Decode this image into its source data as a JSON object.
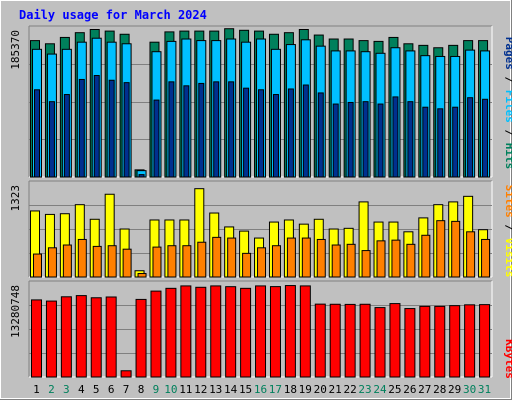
{
  "title": "Daily usage for March 2024",
  "chart_data": [
    {
      "type": "bar",
      "panel": "hits-files-pages",
      "ylabel_max": "185370",
      "ylim": [
        0,
        185370
      ],
      "categories": [
        "1",
        "2",
        "3",
        "4",
        "5",
        "6",
        "7",
        "8",
        "9",
        "10",
        "11",
        "12",
        "13",
        "14",
        "15",
        "16",
        "17",
        "18",
        "19",
        "20",
        "21",
        "22",
        "23",
        "24",
        "25",
        "26",
        "27",
        "28",
        "29",
        "30",
        "31"
      ],
      "weekend_days": [
        2,
        3,
        9,
        10,
        16,
        17,
        23,
        24,
        30,
        31
      ],
      "legend": [
        "Pages",
        "Files",
        "Hits"
      ],
      "series": [
        {
          "name": "Hits",
          "color": "#00805c",
          "values": [
            172000,
            168000,
            176000,
            182000,
            186000,
            184000,
            180000,
            9000,
            170000,
            183000,
            184000,
            184000,
            184000,
            187000,
            185000,
            184000,
            180000,
            182000,
            186000,
            179000,
            174000,
            174000,
            172000,
            171000,
            176000,
            168000,
            166000,
            163000,
            166000,
            172000,
            172000
          ]
        },
        {
          "name": "Files",
          "color": "#00c0ff",
          "values": [
            161000,
            155000,
            161000,
            170000,
            175000,
            170000,
            168000,
            8000,
            158000,
            171000,
            174000,
            172000,
            172000,
            174000,
            170000,
            174000,
            161000,
            167000,
            173000,
            165000,
            159000,
            159000,
            158000,
            156000,
            163000,
            159000,
            153000,
            152000,
            152000,
            160000,
            159000
          ]
        },
        {
          "name": "Pages",
          "color": "#00308f",
          "values": [
            110000,
            95000,
            104000,
            123000,
            128000,
            122000,
            119000,
            3000,
            97000,
            120000,
            115000,
            118000,
            120000,
            120000,
            112000,
            110000,
            104000,
            111000,
            116000,
            106000,
            92000,
            94000,
            95000,
            92000,
            101000,
            95000,
            88000,
            86000,
            88000,
            100000,
            98000
          ]
        }
      ]
    },
    {
      "type": "bar",
      "panel": "visits-sites",
      "ylabel_max": "1323",
      "ylim": [
        0,
        1323
      ],
      "legend": [
        "Sites",
        "Visits"
      ],
      "series": [
        {
          "name": "Visits",
          "color": "#ffff00",
          "values": [
            950,
            900,
            910,
            1040,
            830,
            1190,
            690,
            90,
            820,
            820,
            820,
            1270,
            920,
            720,
            660,
            560,
            790,
            820,
            760,
            830,
            690,
            700,
            1080,
            790,
            790,
            650,
            850,
            1040,
            1080,
            1160,
            680
          ]
        },
        {
          "name": "Sites",
          "color": "#ff8000",
          "values": [
            330,
            420,
            460,
            540,
            440,
            450,
            400,
            50,
            430,
            450,
            450,
            500,
            570,
            560,
            340,
            420,
            450,
            560,
            560,
            540,
            460,
            470,
            380,
            520,
            530,
            470,
            600,
            810,
            800,
            650,
            540
          ]
        }
      ]
    },
    {
      "type": "bar",
      "panel": "kbytes",
      "ylabel_max": "13280748",
      "ylim": [
        0,
        13280748
      ],
      "legend": [
        "KBytes"
      ],
      "series": [
        {
          "name": "KBytes",
          "color": "#ff0000",
          "values": [
            11130000,
            10960000,
            11580000,
            11750000,
            11440000,
            11550000,
            900000,
            11200000,
            12400000,
            12800000,
            13150000,
            12950000,
            13150000,
            13040000,
            12800000,
            13150000,
            13050000,
            13200000,
            13150000,
            10520000,
            10500000,
            10480000,
            10500000,
            10020000,
            10600000,
            9880000,
            10200000,
            10200000,
            10300000,
            10420000,
            10450000
          ]
        }
      ]
    }
  ]
}
